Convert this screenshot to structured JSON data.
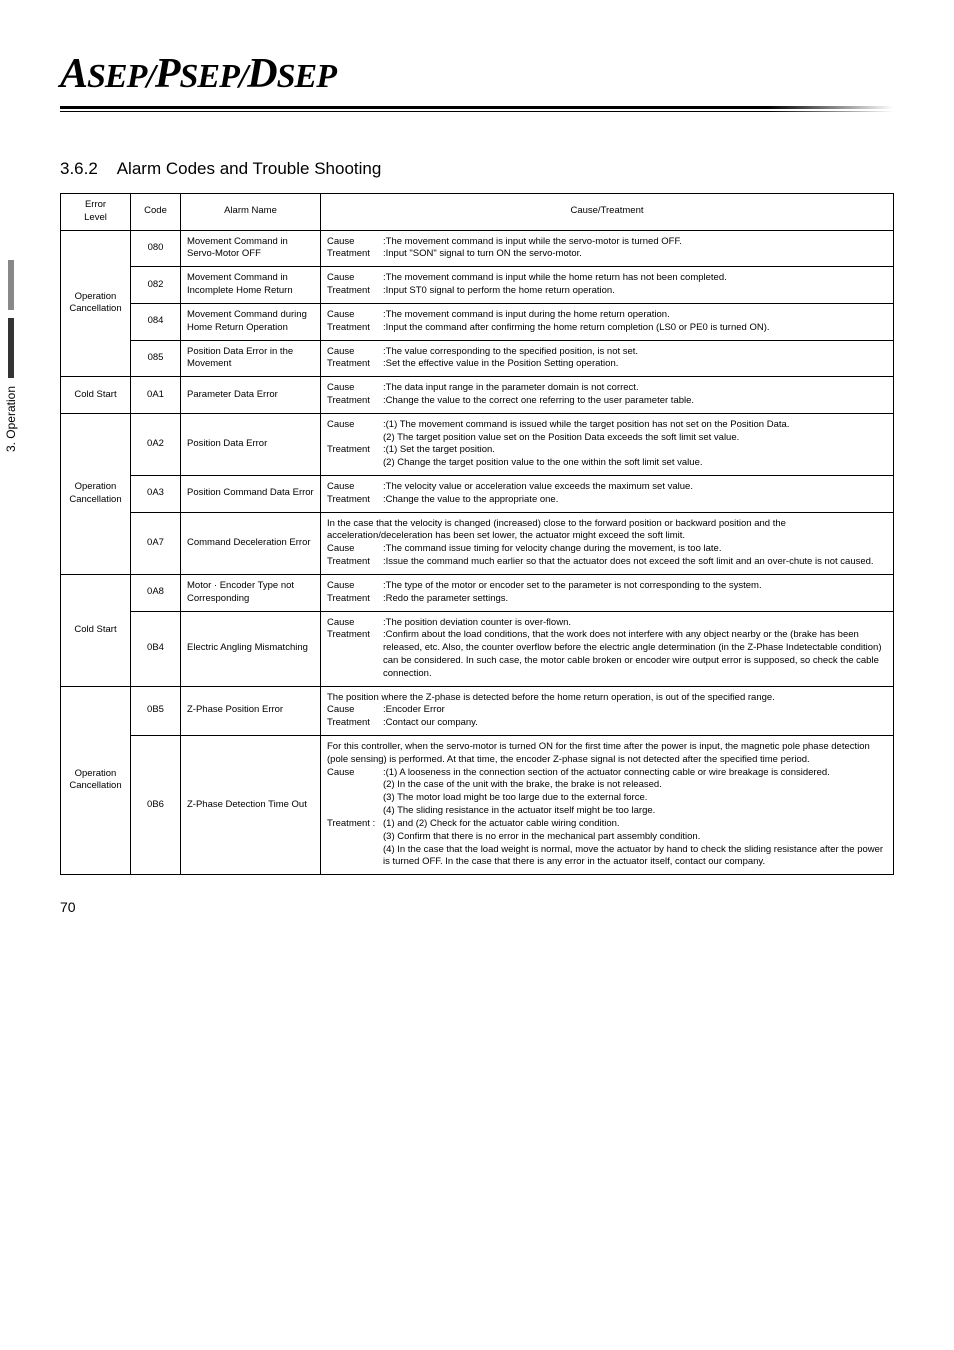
{
  "logo": {
    "a": "A",
    "sep1": "SEP/",
    "p": "P",
    "sep2": "SEP/",
    "d": "D",
    "sep3": "SEP"
  },
  "section": {
    "number": "3.6.2",
    "title": "Alarm Codes and Trouble Shooting"
  },
  "sideTab": "3. Operation",
  "pageNum": "70",
  "headers": {
    "level": "Error\nLevel",
    "code": "Code",
    "name": "Alarm Name",
    "cause": "Cause/Treatment"
  },
  "rows": [
    {
      "level": "Operation\nCancellation",
      "levelSpan": 4,
      "code": "080",
      "name": "Movement Command in Servo-Motor OFF",
      "lines": [
        [
          "Cause",
          ":The movement command is input while the servo-motor is turned OFF."
        ],
        [
          "Treatment",
          ":Input \"SON\" signal to turn ON the servo-motor."
        ]
      ]
    },
    {
      "code": "082",
      "name": "Movement Command in Incomplete Home Return",
      "lines": [
        [
          "Cause",
          ":The movement command is input while the home return has not been completed."
        ],
        [
          "Treatment",
          ":Input ST0 signal to perform the home return operation."
        ]
      ]
    },
    {
      "code": "084",
      "name": "Movement Command during Home Return Operation",
      "lines": [
        [
          "Cause",
          ":The movement command is input during the home return operation."
        ],
        [
          "Treatment",
          ":Input the command after confirming the home return completion (LS0 or PE0 is turned ON)."
        ]
      ]
    },
    {
      "code": "085",
      "name": "Position Data Error in the Movement",
      "lines": [
        [
          "Cause",
          ":The value corresponding to the specified position, is not set."
        ],
        [
          "Treatment",
          ":Set the effective value in the Position Setting operation."
        ]
      ]
    },
    {
      "level": "Cold Start",
      "levelSpan": 1,
      "code": "0A1",
      "name": "Parameter Data Error",
      "lines": [
        [
          "Cause",
          ":The data input range in the parameter domain is not correct."
        ],
        [
          "Treatment",
          ":Change the value to the correct one referring to the user parameter table."
        ]
      ]
    },
    {
      "level": "Operation\nCancellation",
      "levelSpan": 3,
      "code": "0A2",
      "name": "Position Data Error",
      "lines": [
        [
          "Cause",
          ":(1) The movement command is issued while the target position has not set on the Position Data."
        ],
        [
          "",
          "(2) The target position value set on the Position Data exceeds the soft limit set value."
        ],
        [
          "Treatment",
          ":(1) Set the target position."
        ],
        [
          "",
          "(2) Change the target position value to the one within the soft limit set value."
        ]
      ]
    },
    {
      "code": "0A3",
      "name": "Position Command Data Error",
      "lines": [
        [
          "Cause",
          ":The velocity value or acceleration value exceeds the maximum set value."
        ],
        [
          "Treatment",
          ":Change the value to the appropriate one."
        ]
      ]
    },
    {
      "code": "0A7",
      "name": "Command Deceleration Error",
      "freeLines": [
        "In the case that the velocity is changed (increased) close to the forward position or backward position and the acceleration/deceleration has been set lower, the actuator might exceed the soft limit."
      ],
      "lines": [
        [
          "Cause",
          ":The command issue timing for velocity change during the movement, is too late."
        ],
        [
          "Treatment",
          ":Issue the command much earlier so that the actuator does not exceed the soft limit and an over-chute is not caused."
        ]
      ]
    },
    {
      "level": "Cold Start",
      "levelSpan": 2,
      "code": "0A8",
      "name": "Motor · Encoder Type not Corresponding",
      "lines": [
        [
          "Cause",
          ":The type of the motor or encoder set to the parameter is not corresponding to the system."
        ],
        [
          "Treatment",
          ":Redo the parameter settings."
        ]
      ]
    },
    {
      "code": "0B4",
      "name": "Electric Angling Mismatching",
      "lines": [
        [
          "Cause",
          ":The position deviation counter is over-flown."
        ],
        [
          "Treatment",
          ":Confirm about the load conditions, that the work does not interfere with any object nearby or the (brake has been released, etc. Also, the counter overflow before the electric angle determination (in the Z-Phase Indetectable condition) can be considered. In such case, the motor cable broken or encoder wire output error is supposed, so check the cable connection."
        ]
      ]
    },
    {
      "level": "Operation\nCancellation",
      "levelSpan": 2,
      "code": "0B5",
      "name": "Z-Phase Position Error",
      "freeLines": [
        "The position where the Z-phase is detected before the home return operation, is out of the specified range."
      ],
      "lines": [
        [
          "Cause",
          ":Encoder Error"
        ],
        [
          "Treatment",
          ":Contact our company."
        ]
      ]
    },
    {
      "code": "0B6",
      "name": "Z-Phase Detection Time Out",
      "freeLines": [
        "For this controller, when the servo-motor is turned ON for the first time after the power is input, the magnetic pole phase detection (pole sensing) is performed. At that time, the encoder Z-phase signal is not detected after the specified time period."
      ],
      "lines": [
        [
          "Cause",
          ":(1) A looseness in the connection section of the actuator connecting cable or wire breakage is considered."
        ],
        [
          "",
          "(2) In the case of the unit with the brake, the brake is not released."
        ],
        [
          "",
          "(3) The motor load might be too large due to the external force."
        ],
        [
          "",
          "(4) The sliding resistance in the actuator itself might be too large."
        ],
        [
          "Treatment :",
          "(1) and (2) Check for the actuator cable wiring condition."
        ],
        [
          "",
          "(3) Confirm that there is no error in the mechanical part assembly condition."
        ],
        [
          "",
          "(4) In the case that the load weight is normal, move the actuator by hand to check the sliding resistance after the power is turned OFF. In the case that there is any error in the actuator itself, contact our company."
        ]
      ]
    }
  ]
}
